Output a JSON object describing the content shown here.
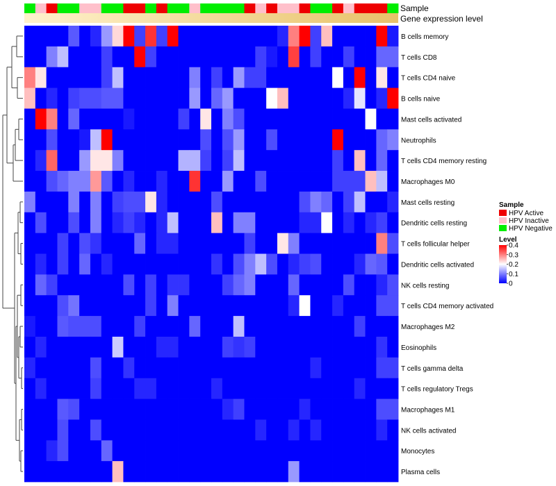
{
  "chart_data": {
    "type": "heatmap",
    "title": "",
    "annotation_tracks": [
      {
        "name": "Sample",
        "colors": [
          "#00ee00",
          "#ffc0cb",
          "#ee0000",
          "#00ee00",
          "#00ee00",
          "#ffc0cb",
          "#ffc0cb",
          "#00ee00",
          "#00ee00",
          "#ee0000",
          "#ee0000",
          "#00ee00",
          "#ee0000",
          "#00ee00",
          "#00ee00",
          "#ffc0cb",
          "#00ee00",
          "#00ee00",
          "#00ee00",
          "#00ee00",
          "#ee0000",
          "#ffc0cb",
          "#ee0000",
          "#ffc0cb",
          "#ffc0cb",
          "#ee0000",
          "#00ee00",
          "#00ee00",
          "#ee0000",
          "#ffc0cb",
          "#ee0000",
          "#ee0000",
          "#ee0000",
          "#00ee00"
        ]
      },
      {
        "name": "Gene expression level",
        "gradient": [
          "#fff2cc",
          "#e8c26a"
        ]
      }
    ],
    "rows": [
      "B cells memory",
      "T cells CD8",
      "T cells CD4 naive",
      "B cells naive",
      "Mast cells activated",
      "Neutrophils",
      "T cells CD4 memory resting",
      "Macrophages M0",
      "Mast cells resting",
      "Dendritic cells resting",
      "T cells follicular helper",
      "Dendritic cells activated",
      "NK cells resting",
      "T cells CD4 memory activated",
      "Macrophages M2",
      "Eosinophils",
      "T cells gamma delta",
      "T cells regulatory  Tregs",
      "Macrophages M1",
      "NK cells activated",
      "Monocytes",
      "Plasma cells"
    ],
    "n_columns": 34,
    "values": [
      [
        0.0,
        0.0,
        0.0,
        0.0,
        0.07,
        0.0,
        0.03,
        0.12,
        0.23,
        0.4,
        0.05,
        0.36,
        0.05,
        0.4,
        0.0,
        0.0,
        0.0,
        0.0,
        0.0,
        0.0,
        0.0,
        0.0,
        0.0,
        0.03,
        0.3,
        0.4,
        0.05,
        0.25,
        0.0,
        0.0,
        0.0,
        0.0,
        0.4,
        0.02
      ],
      [
        0.0,
        0.0,
        0.1,
        0.15,
        0.0,
        0.0,
        0.0,
        0.05,
        0.0,
        0.0,
        0.4,
        0.05,
        0.0,
        0.0,
        0.0,
        0.0,
        0.0,
        0.0,
        0.0,
        0.0,
        0.0,
        0.05,
        0.02,
        0.0,
        0.35,
        0.0,
        0.05,
        0.0,
        0.0,
        0.05,
        0.0,
        0.0,
        0.08,
        0.08
      ],
      [
        0.3,
        0.22,
        0.0,
        0.0,
        0.0,
        0.0,
        0.0,
        0.05,
        0.15,
        0.0,
        0.0,
        0.0,
        0.0,
        0.0,
        0.0,
        0.1,
        0.0,
        0.05,
        0.0,
        0.12,
        0.05,
        0.05,
        0.0,
        0.0,
        0.0,
        0.0,
        0.0,
        0.0,
        0.2,
        0.0,
        0.4,
        0.0,
        0.22,
        0.0
      ],
      [
        0.25,
        0.0,
        0.03,
        0.0,
        0.05,
        0.06,
        0.06,
        0.07,
        0.07,
        0.0,
        0.0,
        0.0,
        0.0,
        0.0,
        0.0,
        0.12,
        0.0,
        0.08,
        0.12,
        0.0,
        0.0,
        0.0,
        0.2,
        0.25,
        0.0,
        0.0,
        0.0,
        0.0,
        0.0,
        0.03,
        0.18,
        0.0,
        0.03,
        0.4
      ],
      [
        0.0,
        0.4,
        0.3,
        0.0,
        0.08,
        0.0,
        0.0,
        0.0,
        0.0,
        0.02,
        0.0,
        0.0,
        0.0,
        0.0,
        0.05,
        0.0,
        0.22,
        0.0,
        0.1,
        0.06,
        0.0,
        0.0,
        0.0,
        0.0,
        0.0,
        0.0,
        0.0,
        0.0,
        0.0,
        0.0,
        0.0,
        0.2,
        0.0,
        0.0
      ],
      [
        0.0,
        0.0,
        0.06,
        0.0,
        0.0,
        0.02,
        0.15,
        0.4,
        0.0,
        0.0,
        0.0,
        0.0,
        0.0,
        0.0,
        0.0,
        0.0,
        0.06,
        0.0,
        0.06,
        0.12,
        0.0,
        0.0,
        0.06,
        0.0,
        0.0,
        0.0,
        0.0,
        0.0,
        0.4,
        0.0,
        0.0,
        0.0,
        0.08,
        0.1
      ],
      [
        0.0,
        0.03,
        0.32,
        0.0,
        0.0,
        0.12,
        0.22,
        0.22,
        0.1,
        0.0,
        0.0,
        0.0,
        0.0,
        0.0,
        0.14,
        0.14,
        0.05,
        0.0,
        0.05,
        0.15,
        0.0,
        0.0,
        0.0,
        0.0,
        0.0,
        0.0,
        0.0,
        0.0,
        0.05,
        0.0,
        0.25,
        0.0,
        0.08,
        0.0
      ],
      [
        0.0,
        0.0,
        0.06,
        0.08,
        0.1,
        0.1,
        0.28,
        0.07,
        0.0,
        0.03,
        0.0,
        0.0,
        0.03,
        0.0,
        0.0,
        0.36,
        0.0,
        0.0,
        0.12,
        0.0,
        0.0,
        0.06,
        0.0,
        0.0,
        0.0,
        0.0,
        0.0,
        0.0,
        0.05,
        0.05,
        0.05,
        0.25,
        0.15,
        0.0
      ],
      [
        0.1,
        0.0,
        0.0,
        0.0,
        0.1,
        0.0,
        0.1,
        0.0,
        0.05,
        0.06,
        0.06,
        0.22,
        0.03,
        0.0,
        0.0,
        0.0,
        0.0,
        0.06,
        0.0,
        0.0,
        0.0,
        0.0,
        0.0,
        0.0,
        0.0,
        0.06,
        0.1,
        0.08,
        0.0,
        0.05,
        0.15,
        0.0,
        0.0,
        0.03
      ],
      [
        0.0,
        0.06,
        0.0,
        0.0,
        0.06,
        0.0,
        0.1,
        0.0,
        0.03,
        0.05,
        0.03,
        0.0,
        0.03,
        0.15,
        0.0,
        0.0,
        0.0,
        0.25,
        0.0,
        0.1,
        0.1,
        0.0,
        0.0,
        0.0,
        0.0,
        0.03,
        0.03,
        0.2,
        0.0,
        0.03,
        0.0,
        0.03,
        0.05,
        0.0
      ],
      [
        0.0,
        0.0,
        0.0,
        0.05,
        0.0,
        0.06,
        0.04,
        0.0,
        0.0,
        0.0,
        0.08,
        0.0,
        0.03,
        0.03,
        0.0,
        0.0,
        0.0,
        0.0,
        0.0,
        0.0,
        0.05,
        0.0,
        0.0,
        0.22,
        0.1,
        0.0,
        0.0,
        0.0,
        0.0,
        0.0,
        0.0,
        0.0,
        0.3,
        0.06
      ],
      [
        0.0,
        0.03,
        0.0,
        0.05,
        0.0,
        0.08,
        0.0,
        0.03,
        0.0,
        0.0,
        0.0,
        0.0,
        0.0,
        0.0,
        0.0,
        0.0,
        0.0,
        0.04,
        0.0,
        0.06,
        0.1,
        0.15,
        0.06,
        0.0,
        0.03,
        0.05,
        0.06,
        0.0,
        0.0,
        0.0,
        0.03,
        0.08,
        0.07,
        0.0
      ],
      [
        0.0,
        0.08,
        0.05,
        0.0,
        0.0,
        0.0,
        0.0,
        0.0,
        0.0,
        0.06,
        0.0,
        0.05,
        0.0,
        0.04,
        0.04,
        0.0,
        0.0,
        0.0,
        0.05,
        0.08,
        0.1,
        0.0,
        0.0,
        0.0,
        0.08,
        0.0,
        0.0,
        0.0,
        0.0,
        0.06,
        0.0,
        0.0,
        0.03,
        0.06
      ],
      [
        0.0,
        0.0,
        0.0,
        0.06,
        0.09,
        0.0,
        0.0,
        0.0,
        0.0,
        0.0,
        0.0,
        0.05,
        0.0,
        0.1,
        0.0,
        0.0,
        0.0,
        0.0,
        0.0,
        0.0,
        0.0,
        0.0,
        0.0,
        0.0,
        0.03,
        0.2,
        0.0,
        0.0,
        0.03,
        0.0,
        0.0,
        0.0,
        0.06,
        0.06
      ],
      [
        0.02,
        0.0,
        0.0,
        0.07,
        0.06,
        0.06,
        0.06,
        0.0,
        0.0,
        0.0,
        0.05,
        0.0,
        0.0,
        0.0,
        0.0,
        0.08,
        0.0,
        0.0,
        0.0,
        0.15,
        0.0,
        0.0,
        0.0,
        0.0,
        0.0,
        0.0,
        0.0,
        0.0,
        0.0,
        0.0,
        0.05,
        0.0,
        0.0,
        0.0
      ],
      [
        0.0,
        0.03,
        0.0,
        0.0,
        0.0,
        0.0,
        0.0,
        0.0,
        0.16,
        0.0,
        0.0,
        0.0,
        0.03,
        0.03,
        0.0,
        0.0,
        0.0,
        0.0,
        0.05,
        0.04,
        0.05,
        0.0,
        0.0,
        0.0,
        0.0,
        0.0,
        0.0,
        0.0,
        0.0,
        0.0,
        0.0,
        0.0,
        0.04,
        0.0
      ],
      [
        0.03,
        0.0,
        0.0,
        0.0,
        0.0,
        0.0,
        0.06,
        0.0,
        0.0,
        0.04,
        0.0,
        0.0,
        0.0,
        0.0,
        0.0,
        0.0,
        0.0,
        0.0,
        0.0,
        0.0,
        0.0,
        0.0,
        0.0,
        0.0,
        0.0,
        0.0,
        0.03,
        0.0,
        0.0,
        0.0,
        0.0,
        0.0,
        0.05,
        0.05
      ],
      [
        0.0,
        0.03,
        0.0,
        0.0,
        0.0,
        0.0,
        0.05,
        0.0,
        0.0,
        0.0,
        0.03,
        0.03,
        0.0,
        0.0,
        0.0,
        0.0,
        0.0,
        0.03,
        0.0,
        0.0,
        0.0,
        0.0,
        0.0,
        0.0,
        0.0,
        0.0,
        0.0,
        0.0,
        0.0,
        0.0,
        0.03,
        0.0,
        0.0,
        0.0
      ],
      [
        0.0,
        0.0,
        0.0,
        0.07,
        0.06,
        0.0,
        0.0,
        0.0,
        0.0,
        0.0,
        0.0,
        0.0,
        0.0,
        0.0,
        0.0,
        0.0,
        0.0,
        0.0,
        0.03,
        0.05,
        0.0,
        0.0,
        0.0,
        0.0,
        0.0,
        0.03,
        0.0,
        0.0,
        0.0,
        0.0,
        0.0,
        0.0,
        0.06,
        0.06
      ],
      [
        0.0,
        0.0,
        0.0,
        0.06,
        0.0,
        0.0,
        0.06,
        0.0,
        0.0,
        0.0,
        0.0,
        0.0,
        0.0,
        0.0,
        0.0,
        0.0,
        0.0,
        0.0,
        0.0,
        0.0,
        0.0,
        0.03,
        0.0,
        0.0,
        0.03,
        0.0,
        0.03,
        0.0,
        0.0,
        0.0,
        0.0,
        0.0,
        0.03,
        0.0
      ],
      [
        0.0,
        0.0,
        0.03,
        0.06,
        0.0,
        0.0,
        0.0,
        0.08,
        0.0,
        0.0,
        0.0,
        0.0,
        0.0,
        0.0,
        0.0,
        0.0,
        0.0,
        0.0,
        0.0,
        0.0,
        0.0,
        0.0,
        0.0,
        0.0,
        0.0,
        0.0,
        0.0,
        0.0,
        0.0,
        0.0,
        0.0,
        0.0,
        0.0,
        0.0
      ],
      [
        0.0,
        0.0,
        0.0,
        0.0,
        0.0,
        0.0,
        0.0,
        0.0,
        0.25,
        0.0,
        0.0,
        0.0,
        0.0,
        0.0,
        0.0,
        0.0,
        0.0,
        0.0,
        0.0,
        0.0,
        0.0,
        0.0,
        0.0,
        0.0,
        0.12,
        0.0,
        0.0,
        0.0,
        0.0,
        0.0,
        0.0,
        0.0,
        0.0,
        0.0
      ]
    ],
    "color_scale": {
      "min": 0,
      "max": 0.4,
      "colors": [
        "#0000ff",
        "#ffffff",
        "#ff0000"
      ]
    },
    "legend": {
      "position": "right",
      "sample_title": "Sample",
      "sample_items": [
        {
          "label": "HPV Active",
          "color": "#ee0000"
        },
        {
          "label": "HPV Inactive",
          "color": "#ffc0cb"
        },
        {
          "label": "HPV Negative",
          "color": "#00ee00"
        }
      ],
      "level_title": "Level",
      "level_ticks": [
        "0.4",
        "0.3",
        "0.2",
        "0.1",
        "0"
      ],
      "level_values": [
        0.4,
        0.3,
        0.2,
        0.1,
        0
      ]
    }
  }
}
